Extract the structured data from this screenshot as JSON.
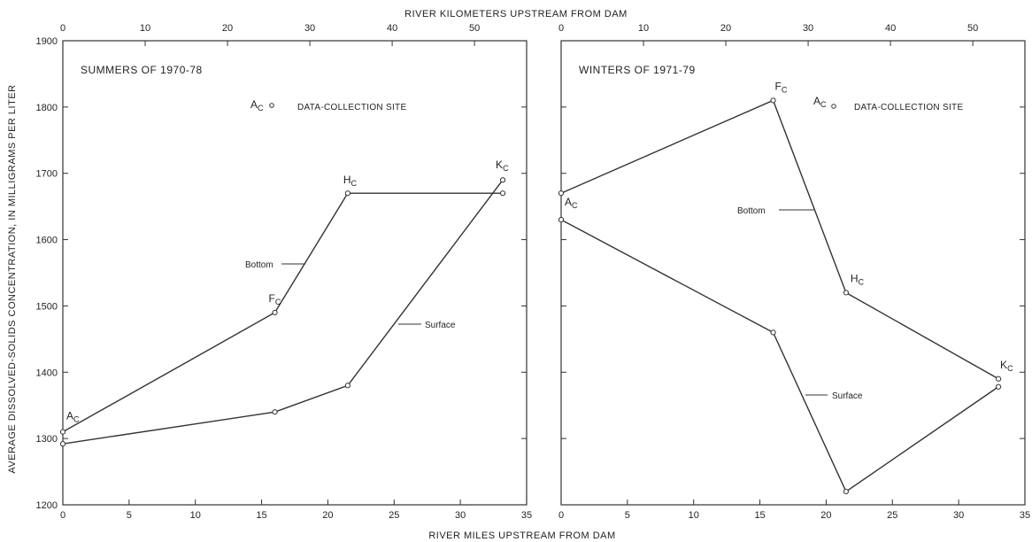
{
  "chart_data": [
    {
      "type": "line",
      "title": "SUMMERS OF 1970-78",
      "xlabel": "RIVER MILES UPSTREAM FROM DAM",
      "x2label": "RIVER KILOMETERS UPSTREAM FROM DAM",
      "ylabel": "AVERAGE DISSOLVED-SOLIDS CONCENTRATION, IN MILLIGRAMS PER LITER",
      "xlim": [
        0,
        35
      ],
      "ylim": [
        1200,
        1900
      ],
      "x2lim": [
        0,
        56.33
      ],
      "xticks": [
        "0",
        "5",
        "10",
        "15",
        "20",
        "25",
        "30",
        "35"
      ],
      "x2ticks": [
        "0",
        "10",
        "20",
        "30",
        "40",
        "50"
      ],
      "yticks": [
        "1200",
        "1300",
        "1400",
        "1500",
        "1600",
        "1700",
        "1800",
        "1900"
      ],
      "legend": {
        "symbol": "A",
        "subscript": "C",
        "text": "DATA-COLLECTION SITE"
      },
      "series": [
        {
          "name": "Bottom",
          "x": [
            0,
            16,
            21.5,
            33.2
          ],
          "y": [
            1310,
            1490,
            1670,
            1670
          ]
        },
        {
          "name": "Surface",
          "x": [
            0,
            16,
            21.5,
            33.2
          ],
          "y": [
            1292,
            1340,
            1380,
            1690
          ]
        }
      ],
      "sites": [
        {
          "letter": "A",
          "sub": "C",
          "x": 0,
          "y": 1310
        },
        {
          "letter": "F",
          "sub": "C",
          "x": 16,
          "y": 1490
        },
        {
          "letter": "H",
          "sub": "C",
          "x": 21.5,
          "y": 1670
        },
        {
          "letter": "K",
          "sub": "C",
          "x": 33.2,
          "y": 1690
        }
      ]
    },
    {
      "type": "line",
      "title": "WINTERS OF 1971-79",
      "xlim": [
        0,
        35
      ],
      "ylim": [
        1200,
        1900
      ],
      "x2lim": [
        0,
        56.33
      ],
      "xticks": [
        "0",
        "5",
        "10",
        "15",
        "20",
        "25",
        "30",
        "35"
      ],
      "x2ticks": [
        "0",
        "10",
        "20",
        "30",
        "40",
        "50"
      ],
      "legend": {
        "symbol": "A",
        "subscript": "C",
        "text": "DATA-COLLECTION SITE"
      },
      "series": [
        {
          "name": "Bottom",
          "x": [
            0,
            16,
            21.5,
            33
          ],
          "y": [
            1670,
            1810,
            1520,
            1390
          ]
        },
        {
          "name": "Surface",
          "x": [
            0,
            16,
            21.5,
            33
          ],
          "y": [
            1630,
            1460,
            1220,
            1378
          ]
        }
      ],
      "sites": [
        {
          "letter": "A",
          "sub": "C",
          "x": 0,
          "y": 1670
        },
        {
          "letter": "F",
          "sub": "C",
          "x": 16,
          "y": 1810
        },
        {
          "letter": "H",
          "sub": "C",
          "x": 21.5,
          "y": 1520
        },
        {
          "letter": "K",
          "sub": "C",
          "x": 33,
          "y": 1390
        }
      ]
    }
  ]
}
